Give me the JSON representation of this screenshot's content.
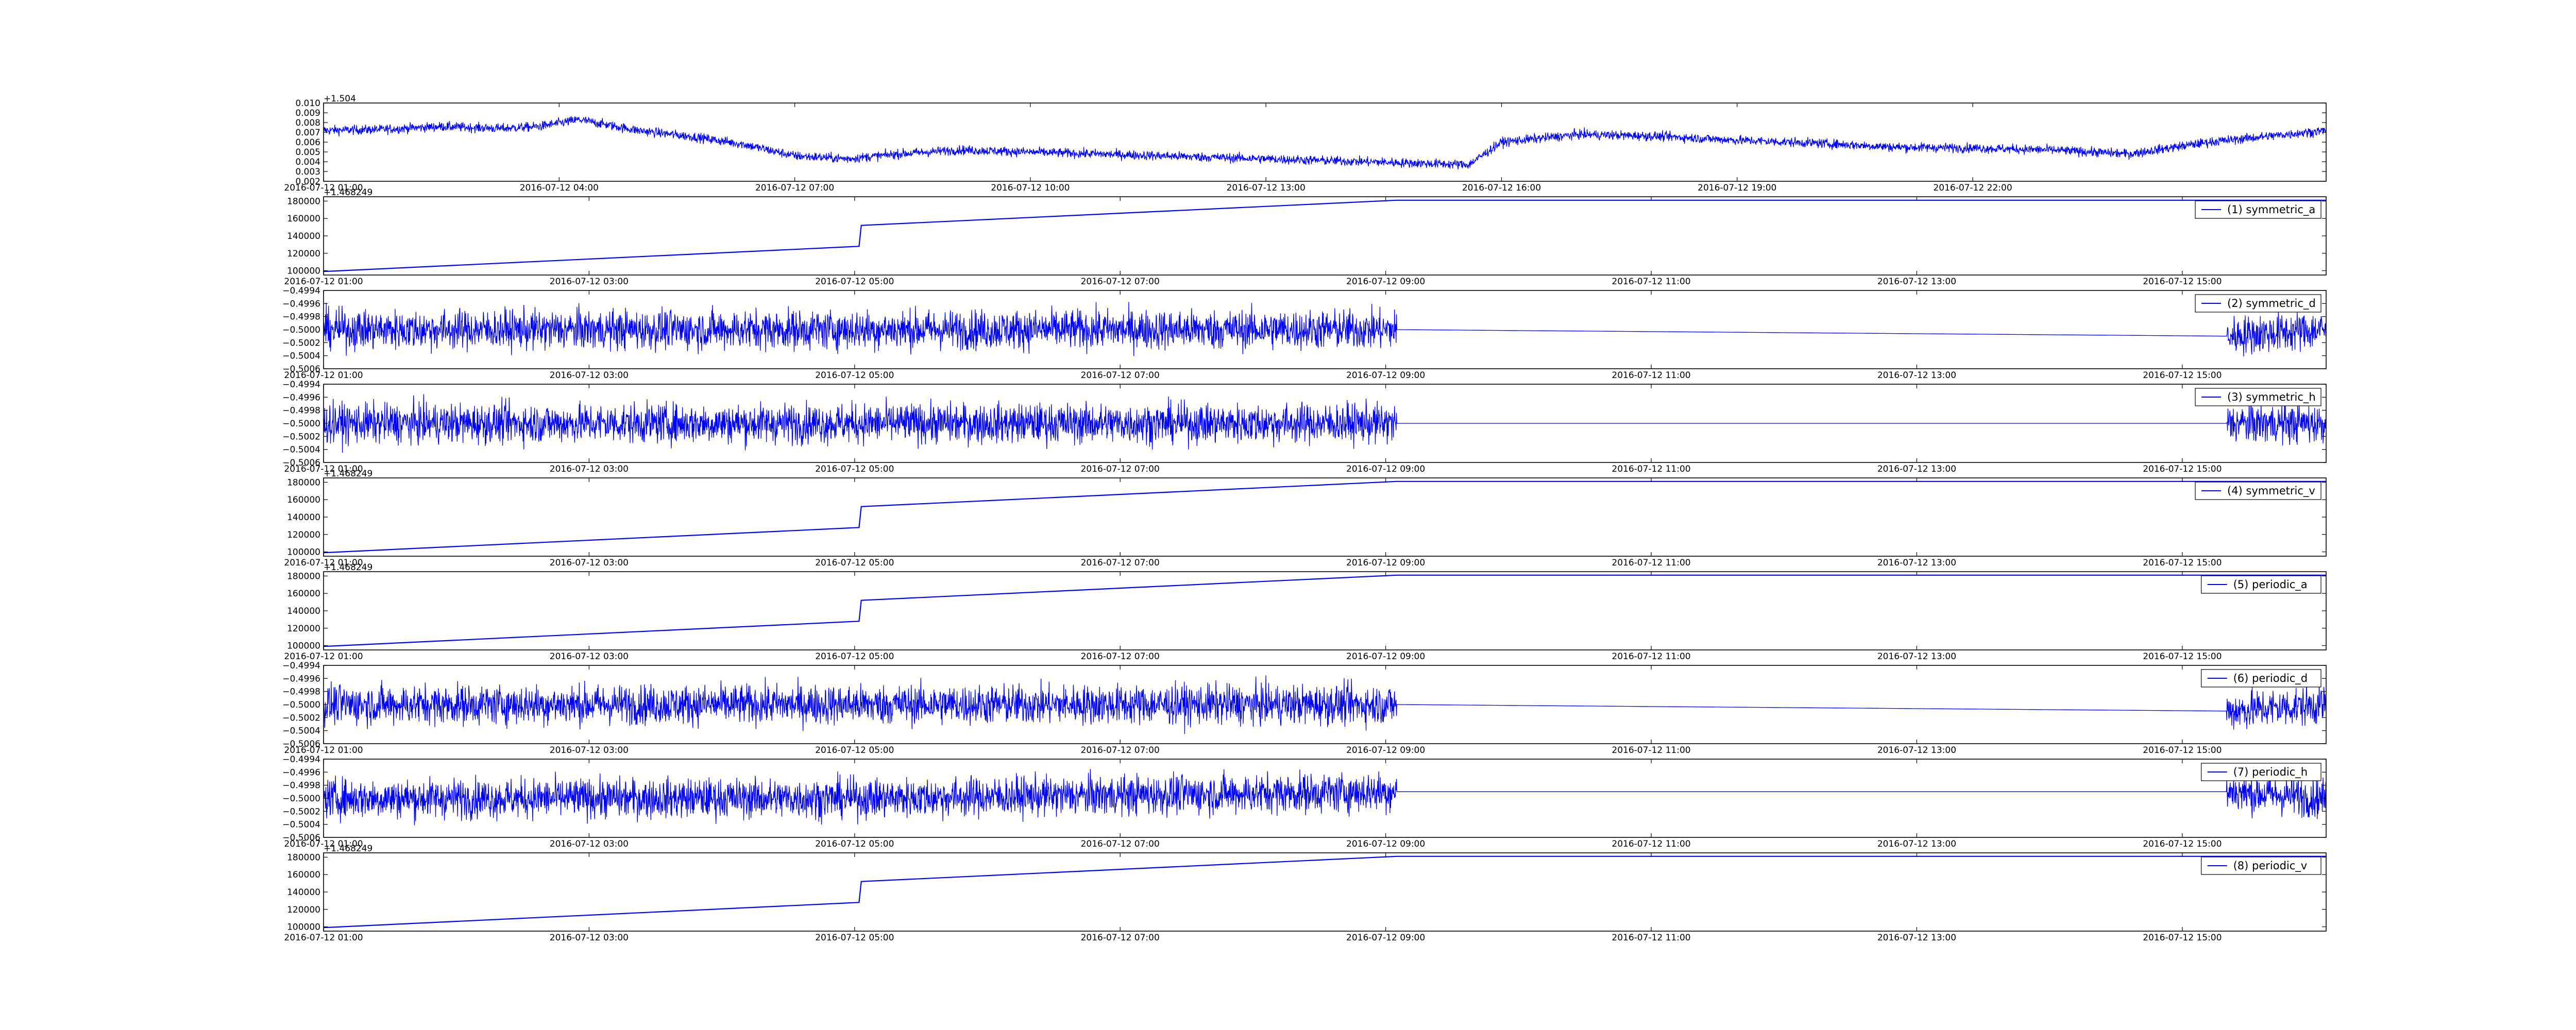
{
  "chart_data": [
    {
      "type": "line",
      "title": "",
      "xlabel": "",
      "ylabel": "",
      "offset_text": "+1.504",
      "xlim": [
        "2016-07-12 01:00",
        "2016-07-13 02:30"
      ],
      "ylim": [
        0.002,
        0.01
      ],
      "yticks": [
        0.002,
        0.003,
        0.004,
        0.005,
        0.006,
        0.007,
        0.008,
        0.009,
        0.01
      ],
      "ytick_labels": [
        "0.002",
        "0.003",
        "0.004",
        "0.005",
        "0.006",
        "0.007",
        "0.008",
        "0.009",
        "0.010"
      ],
      "xticks": [
        "2016-07-12 01:00",
        "2016-07-12 04:00",
        "2016-07-12 07:00",
        "2016-07-12 10:00",
        "2016-07-12 13:00",
        "2016-07-12 16:00",
        "2016-07-12 19:00",
        "2016-07-12 22:00"
      ],
      "xtick_labels": [
        "2016-07-12 01:00",
        "2016-07-12 04:00",
        "2016-07-12 07:00",
        "2016-07-12 10:00",
        "2016-07-12 13:00",
        "2016-07-12 16:00",
        "2016-07-12 19:00",
        "2016-07-12 22:00"
      ],
      "legend": "none",
      "grid": false,
      "color": "#0000ff",
      "series": [
        {
          "x": [
            "2016-07-12 01:00",
            "2016-07-12 01:45",
            "2016-07-12 02:30",
            "2016-07-12 03:15",
            "2016-07-12 03:45",
            "2016-07-12 04:15",
            "2016-07-12 05:00",
            "2016-07-12 05:45",
            "2016-07-12 06:20",
            "2016-07-12 07:00",
            "2016-07-12 07:40",
            "2016-07-12 08:20",
            "2016-07-12 09:05",
            "2016-07-12 15:35",
            "2016-07-12 16:00",
            "2016-07-12 17:00",
            "2016-07-12 18:00",
            "2016-07-12 19:00",
            "2016-07-12 20:00",
            "2016-07-12 21:00",
            "2016-07-12 22:00",
            "2016-07-12 23:00",
            "2016-07-13 00:00",
            "2016-07-13 01:00",
            "2016-07-13 02:30"
          ],
          "y": [
            0.0072,
            0.0073,
            0.0076,
            0.0074,
            0.0076,
            0.0083,
            0.0072,
            0.0065,
            0.0058,
            0.0046,
            0.0043,
            0.0048,
            0.0052,
            0.0037,
            0.006,
            0.0068,
            0.0066,
            0.0062,
            0.0059,
            0.0055,
            0.0054,
            0.0052,
            0.0048,
            0.006,
            0.0072
          ],
          "noise": 0.0004
        }
      ]
    },
    {
      "type": "line",
      "title": "",
      "offset_text": "+1.468249",
      "xlim": [
        "2016-07-12 01:00",
        "2016-07-12 16:05"
      ],
      "ylim": [
        95000,
        185000
      ],
      "yticks": [
        100000,
        120000,
        140000,
        160000,
        180000
      ],
      "ytick_labels": [
        "100000",
        "120000",
        "140000",
        "160000",
        "180000"
      ],
      "xticks": [
        "2016-07-12 01:00",
        "2016-07-12 03:00",
        "2016-07-12 05:00",
        "2016-07-12 07:00",
        "2016-07-12 09:00",
        "2016-07-12 11:00",
        "2016-07-12 13:00",
        "2016-07-12 15:00"
      ],
      "xtick_labels": [
        "2016-07-12 01:00",
        "2016-07-12 03:00",
        "2016-07-12 05:00",
        "2016-07-12 07:00",
        "2016-07-12 09:00",
        "2016-07-12 11:00",
        "2016-07-12 13:00",
        "2016-07-12 15:00"
      ],
      "legend": "top-right",
      "grid": false,
      "color": "#0000ff",
      "series": [
        {
          "name": "(1) symmetric_a",
          "x": [
            "2016-07-12 01:00",
            "2016-07-12 05:02",
            "2016-07-12 05:03",
            "2016-07-12 09:05",
            "2016-07-12 16:05"
          ],
          "y": [
            99000,
            128000,
            152000,
            181000,
            181000
          ],
          "noise": 0
        }
      ]
    },
    {
      "type": "line",
      "title": "",
      "offset_text": "",
      "xlim": [
        "2016-07-12 01:00",
        "2016-07-12 16:05"
      ],
      "ylim": [
        -0.5006,
        -0.4994
      ],
      "yticks": [
        -0.5006,
        -0.5004,
        -0.5002,
        -0.5,
        -0.4998,
        -0.4996,
        -0.4994
      ],
      "ytick_labels": [
        "−0.5006",
        "−0.5004",
        "−0.5002",
        "−0.5000",
        "−0.4998",
        "−0.4996",
        "−0.4994"
      ],
      "xticks": [
        "2016-07-12 01:00",
        "2016-07-12 03:00",
        "2016-07-12 05:00",
        "2016-07-12 07:00",
        "2016-07-12 09:00",
        "2016-07-12 11:00",
        "2016-07-12 13:00",
        "2016-07-12 15:00"
      ],
      "xtick_labels": [
        "2016-07-12 01:00",
        "2016-07-12 03:00",
        "2016-07-12 05:00",
        "2016-07-12 07:00",
        "2016-07-12 09:00",
        "2016-07-12 11:00",
        "2016-07-12 13:00",
        "2016-07-12 15:00"
      ],
      "legend": "top-right",
      "grid": false,
      "color": "#0000ff",
      "series": [
        {
          "name": "(2) symmetric_d",
          "x": [
            "2016-07-12 01:00",
            "2016-07-12 05:00",
            "2016-07-12 09:05",
            "2016-07-12 15:20",
            "2016-07-12 16:05"
          ],
          "y": [
            -0.5,
            -0.5,
            -0.5,
            -0.5001,
            -0.5
          ],
          "noise": 0.00025,
          "noise_segments": [
            [
              "2016-07-12 01:00",
              "2016-07-12 09:05"
            ],
            [
              "2016-07-12 15:20",
              "2016-07-12 16:05"
            ]
          ]
        }
      ]
    },
    {
      "type": "line",
      "title": "",
      "offset_text": "",
      "xlim": [
        "2016-07-12 01:00",
        "2016-07-12 16:05"
      ],
      "ylim": [
        -0.5006,
        -0.4994
      ],
      "yticks": [
        -0.5006,
        -0.5004,
        -0.5002,
        -0.5,
        -0.4998,
        -0.4996,
        -0.4994
      ],
      "ytick_labels": [
        "−0.5006",
        "−0.5004",
        "−0.5002",
        "−0.5000",
        "−0.4998",
        "−0.4996",
        "−0.4994"
      ],
      "xticks": [
        "2016-07-12 01:00",
        "2016-07-12 03:00",
        "2016-07-12 05:00",
        "2016-07-12 07:00",
        "2016-07-12 09:00",
        "2016-07-12 11:00",
        "2016-07-12 13:00",
        "2016-07-12 15:00"
      ],
      "xtick_labels": [
        "2016-07-12 01:00",
        "2016-07-12 03:00",
        "2016-07-12 05:00",
        "2016-07-12 07:00",
        "2016-07-12 09:00",
        "2016-07-12 11:00",
        "2016-07-12 13:00",
        "2016-07-12 15:00"
      ],
      "legend": "top-right",
      "grid": false,
      "color": "#0000ff",
      "series": [
        {
          "name": "(3) symmetric_h",
          "x": [
            "2016-07-12 01:00",
            "2016-07-12 05:00",
            "2016-07-12 09:05",
            "2016-07-12 15:20",
            "2016-07-12 16:05"
          ],
          "y": [
            -0.5,
            -0.5,
            -0.5,
            -0.5,
            -0.5
          ],
          "noise": 0.00025,
          "noise_segments": [
            [
              "2016-07-12 01:00",
              "2016-07-12 09:05"
            ],
            [
              "2016-07-12 15:20",
              "2016-07-12 16:05"
            ]
          ]
        }
      ]
    },
    {
      "type": "line",
      "title": "",
      "offset_text": "+1.468249",
      "xlim": [
        "2016-07-12 01:00",
        "2016-07-12 16:05"
      ],
      "ylim": [
        95000,
        185000
      ],
      "yticks": [
        100000,
        120000,
        140000,
        160000,
        180000
      ],
      "ytick_labels": [
        "100000",
        "120000",
        "140000",
        "160000",
        "180000"
      ],
      "xticks": [
        "2016-07-12 01:00",
        "2016-07-12 03:00",
        "2016-07-12 05:00",
        "2016-07-12 07:00",
        "2016-07-12 09:00",
        "2016-07-12 11:00",
        "2016-07-12 13:00",
        "2016-07-12 15:00"
      ],
      "xtick_labels": [
        "2016-07-12 01:00",
        "2016-07-12 03:00",
        "2016-07-12 05:00",
        "2016-07-12 07:00",
        "2016-07-12 09:00",
        "2016-07-12 11:00",
        "2016-07-12 13:00",
        "2016-07-12 15:00"
      ],
      "legend": "top-right",
      "grid": false,
      "color": "#0000ff",
      "series": [
        {
          "name": "(4) symmetric_v",
          "x": [
            "2016-07-12 01:00",
            "2016-07-12 05:02",
            "2016-07-12 05:03",
            "2016-07-12 09:05",
            "2016-07-12 16:05"
          ],
          "y": [
            99000,
            128000,
            152000,
            181000,
            181000
          ],
          "noise": 0
        }
      ]
    },
    {
      "type": "line",
      "title": "",
      "offset_text": "+1.468249",
      "xlim": [
        "2016-07-12 01:00",
        "2016-07-12 16:05"
      ],
      "ylim": [
        95000,
        185000
      ],
      "yticks": [
        100000,
        120000,
        140000,
        160000,
        180000
      ],
      "ytick_labels": [
        "100000",
        "120000",
        "140000",
        "160000",
        "180000"
      ],
      "xticks": [
        "2016-07-12 01:00",
        "2016-07-12 03:00",
        "2016-07-12 05:00",
        "2016-07-12 07:00",
        "2016-07-12 09:00",
        "2016-07-12 11:00",
        "2016-07-12 13:00",
        "2016-07-12 15:00"
      ],
      "xtick_labels": [
        "2016-07-12 01:00",
        "2016-07-12 03:00",
        "2016-07-12 05:00",
        "2016-07-12 07:00",
        "2016-07-12 09:00",
        "2016-07-12 11:00",
        "2016-07-12 13:00",
        "2016-07-12 15:00"
      ],
      "legend": "top-right",
      "grid": false,
      "color": "#0000ff",
      "series": [
        {
          "name": "(5) periodic_a",
          "x": [
            "2016-07-12 01:00",
            "2016-07-12 05:02",
            "2016-07-12 05:03",
            "2016-07-12 09:05",
            "2016-07-12 16:05"
          ],
          "y": [
            99000,
            128000,
            152000,
            181000,
            181000
          ],
          "noise": 0
        }
      ]
    },
    {
      "type": "line",
      "title": "",
      "offset_text": "",
      "xlim": [
        "2016-07-12 01:00",
        "2016-07-12 16:05"
      ],
      "ylim": [
        -0.5006,
        -0.4994
      ],
      "yticks": [
        -0.5006,
        -0.5004,
        -0.5002,
        -0.5,
        -0.4998,
        -0.4996,
        -0.4994
      ],
      "ytick_labels": [
        "−0.5006",
        "−0.5004",
        "−0.5002",
        "−0.5000",
        "−0.4998",
        "−0.4996",
        "−0.4994"
      ],
      "xticks": [
        "2016-07-12 01:00",
        "2016-07-12 03:00",
        "2016-07-12 05:00",
        "2016-07-12 07:00",
        "2016-07-12 09:00",
        "2016-07-12 11:00",
        "2016-07-12 13:00",
        "2016-07-12 15:00"
      ],
      "xtick_labels": [
        "2016-07-12 01:00",
        "2016-07-12 03:00",
        "2016-07-12 05:00",
        "2016-07-12 07:00",
        "2016-07-12 09:00",
        "2016-07-12 11:00",
        "2016-07-12 13:00",
        "2016-07-12 15:00"
      ],
      "legend": "top-right",
      "grid": false,
      "color": "#0000ff",
      "series": [
        {
          "name": "(6) periodic_d",
          "x": [
            "2016-07-12 01:00",
            "2016-07-12 05:00",
            "2016-07-12 09:05",
            "2016-07-12 15:20",
            "2016-07-12 16:05"
          ],
          "y": [
            -0.5,
            -0.5,
            -0.5,
            -0.5001,
            -0.5
          ],
          "noise": 0.00025,
          "noise_segments": [
            [
              "2016-07-12 01:00",
              "2016-07-12 09:05"
            ],
            [
              "2016-07-12 15:20",
              "2016-07-12 16:05"
            ]
          ]
        }
      ]
    },
    {
      "type": "line",
      "title": "",
      "offset_text": "",
      "xlim": [
        "2016-07-12 01:00",
        "2016-07-12 16:05"
      ],
      "ylim": [
        -0.5006,
        -0.4994
      ],
      "yticks": [
        -0.5006,
        -0.5004,
        -0.5002,
        -0.5,
        -0.4998,
        -0.4996,
        -0.4994
      ],
      "ytick_labels": [
        "−0.5006",
        "−0.5004",
        "−0.5002",
        "−0.5000",
        "−0.4998",
        "−0.4996",
        "−0.4994"
      ],
      "xticks": [
        "2016-07-12 01:00",
        "2016-07-12 03:00",
        "2016-07-12 05:00",
        "2016-07-12 07:00",
        "2016-07-12 09:00",
        "2016-07-12 11:00",
        "2016-07-12 13:00",
        "2016-07-12 15:00"
      ],
      "xtick_labels": [
        "2016-07-12 01:00",
        "2016-07-12 03:00",
        "2016-07-12 05:00",
        "2016-07-12 07:00",
        "2016-07-12 09:00",
        "2016-07-12 11:00",
        "2016-07-12 13:00",
        "2016-07-12 15:00"
      ],
      "legend": "top-right",
      "grid": false,
      "color": "#0000ff",
      "series": [
        {
          "name": "(7) periodic_h",
          "x": [
            "2016-07-12 01:00",
            "2016-07-12 05:00",
            "2016-07-12 09:05",
            "2016-07-12 15:20",
            "2016-07-12 16:05"
          ],
          "y": [
            -0.5,
            -0.5,
            -0.4999,
            -0.4999,
            -0.5
          ],
          "noise": 0.00025,
          "noise_segments": [
            [
              "2016-07-12 01:00",
              "2016-07-12 09:05"
            ],
            [
              "2016-07-12 15:20",
              "2016-07-12 16:05"
            ]
          ]
        }
      ]
    },
    {
      "type": "line",
      "title": "",
      "offset_text": "+1.468249",
      "xlim": [
        "2016-07-12 01:00",
        "2016-07-12 16:05"
      ],
      "ylim": [
        95000,
        185000
      ],
      "yticks": [
        100000,
        120000,
        140000,
        160000,
        180000
      ],
      "ytick_labels": [
        "100000",
        "120000",
        "140000",
        "160000",
        "180000"
      ],
      "xticks": [
        "2016-07-12 01:00",
        "2016-07-12 03:00",
        "2016-07-12 05:00",
        "2016-07-12 07:00",
        "2016-07-12 09:00",
        "2016-07-12 11:00",
        "2016-07-12 13:00",
        "2016-07-12 15:00"
      ],
      "xtick_labels": [
        "2016-07-12 01:00",
        "2016-07-12 03:00",
        "2016-07-12 05:00",
        "2016-07-12 07:00",
        "2016-07-12 09:00",
        "2016-07-12 11:00",
        "2016-07-12 13:00",
        "2016-07-12 15:00"
      ],
      "legend": "top-right",
      "grid": false,
      "color": "#0000ff",
      "series": [
        {
          "name": "(8) periodic_v",
          "x": [
            "2016-07-12 01:00",
            "2016-07-12 05:02",
            "2016-07-12 05:03",
            "2016-07-12 09:05",
            "2016-07-12 16:05"
          ],
          "y": [
            99000,
            128000,
            152000,
            181000,
            181000
          ],
          "noise": 0
        }
      ]
    }
  ]
}
